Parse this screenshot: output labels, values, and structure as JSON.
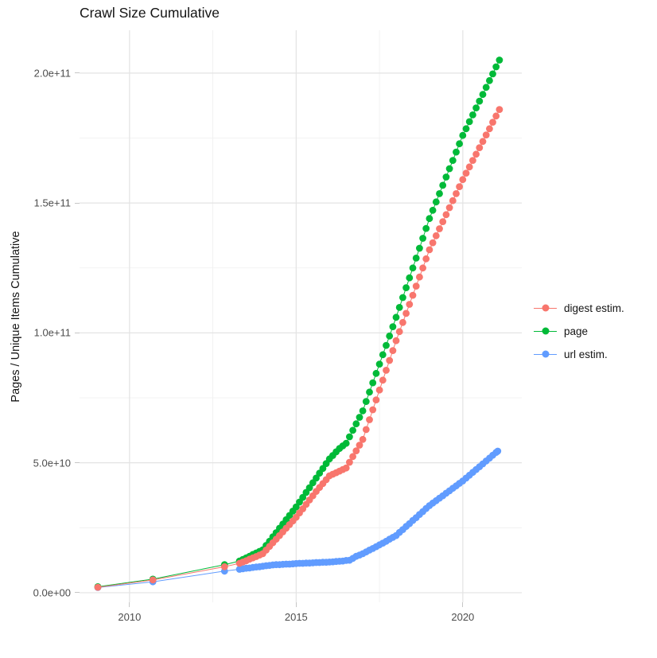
{
  "chart_data": {
    "type": "scatter",
    "title": "Crawl Size Cumulative",
    "xlabel": "",
    "ylabel": "Pages / Unique Items Cumulative",
    "legend_position": "right",
    "grid": true,
    "y_unit": "values stored in units of 1e10 items",
    "xlim": [
      2008.5,
      2021.77
    ],
    "ylim_e10": [
      -0.37,
      21.65
    ],
    "x_ticks": [
      {
        "value": 2010,
        "label": "2010"
      },
      {
        "value": 2015,
        "label": "2015"
      },
      {
        "value": 2020,
        "label": "2020"
      }
    ],
    "x_minor": [
      2012.5,
      2017.5
    ],
    "y_ticks": [
      {
        "value_e10": 0,
        "label": "0.0e+00"
      },
      {
        "value_e10": 5,
        "label": "5.0e+10"
      },
      {
        "value_e10": 10,
        "label": "1.0e+11"
      },
      {
        "value_e10": 15,
        "label": "1.5e+11"
      },
      {
        "value_e10": 20,
        "label": "2.0e+11"
      }
    ],
    "y_minor_e10": [
      2.5,
      7.5,
      12.5,
      17.5
    ],
    "colors": {
      "grid_major": "#e3e3e3",
      "grid_minor": "#efefef",
      "axis_text": "#4d4d4d",
      "text": "#141414"
    },
    "series": [
      {
        "id": "digest",
        "name": "digest estim.",
        "color": "#F8766D",
        "points": [
          [
            2009.05,
            0.21
          ],
          [
            2010.7,
            0.49
          ],
          [
            2012.85,
            1.0
          ],
          [
            2013.3,
            1.13
          ],
          [
            2013.4,
            1.18
          ],
          [
            2013.5,
            1.23
          ],
          [
            2013.6,
            1.29
          ],
          [
            2013.7,
            1.34
          ],
          [
            2013.8,
            1.39
          ],
          [
            2013.9,
            1.45
          ],
          [
            2014.0,
            1.5
          ],
          [
            2014.1,
            1.64
          ],
          [
            2014.2,
            1.78
          ],
          [
            2014.3,
            1.92
          ],
          [
            2014.4,
            2.06
          ],
          [
            2014.5,
            2.2
          ],
          [
            2014.6,
            2.34
          ],
          [
            2014.7,
            2.48
          ],
          [
            2014.8,
            2.62
          ],
          [
            2014.9,
            2.76
          ],
          [
            2015.0,
            2.9
          ],
          [
            2015.1,
            3.07
          ],
          [
            2015.2,
            3.23
          ],
          [
            2015.3,
            3.4
          ],
          [
            2015.4,
            3.57
          ],
          [
            2015.5,
            3.73
          ],
          [
            2015.6,
            3.9
          ],
          [
            2015.7,
            4.05
          ],
          [
            2015.8,
            4.2
          ],
          [
            2015.9,
            4.35
          ],
          [
            2016.0,
            4.5
          ],
          [
            2016.1,
            4.56
          ],
          [
            2016.2,
            4.62
          ],
          [
            2016.3,
            4.68
          ],
          [
            2016.4,
            4.74
          ],
          [
            2016.5,
            4.8
          ],
          [
            2016.6,
            5.02
          ],
          [
            2016.7,
            5.24
          ],
          [
            2016.8,
            5.46
          ],
          [
            2016.9,
            5.68
          ],
          [
            2017.0,
            5.9
          ],
          [
            2017.1,
            6.28
          ],
          [
            2017.2,
            6.66
          ],
          [
            2017.3,
            7.04
          ],
          [
            2017.4,
            7.42
          ],
          [
            2017.5,
            7.8
          ],
          [
            2017.6,
            8.18
          ],
          [
            2017.7,
            8.56
          ],
          [
            2017.8,
            8.94
          ],
          [
            2017.9,
            9.32
          ],
          [
            2018.0,
            9.7
          ],
          [
            2018.1,
            10.05
          ],
          [
            2018.2,
            10.4
          ],
          [
            2018.3,
            10.75
          ],
          [
            2018.4,
            11.1
          ],
          [
            2018.5,
            11.45
          ],
          [
            2018.6,
            11.8
          ],
          [
            2018.7,
            12.15
          ],
          [
            2018.8,
            12.5
          ],
          [
            2018.9,
            12.85
          ],
          [
            2019.0,
            13.2
          ],
          [
            2019.1,
            13.47
          ],
          [
            2019.2,
            13.74
          ],
          [
            2019.3,
            14.01
          ],
          [
            2019.4,
            14.28
          ],
          [
            2019.5,
            14.55
          ],
          [
            2019.6,
            14.82
          ],
          [
            2019.7,
            15.09
          ],
          [
            2019.8,
            15.36
          ],
          [
            2019.9,
            15.63
          ],
          [
            2020.0,
            15.9
          ],
          [
            2020.1,
            16.15
          ],
          [
            2020.2,
            16.39
          ],
          [
            2020.3,
            16.64
          ],
          [
            2020.4,
            16.88
          ],
          [
            2020.5,
            17.13
          ],
          [
            2020.6,
            17.37
          ],
          [
            2020.7,
            17.62
          ],
          [
            2020.8,
            17.86
          ],
          [
            2020.9,
            18.11
          ],
          [
            2021.0,
            18.35
          ],
          [
            2021.1,
            18.6
          ]
        ]
      },
      {
        "id": "page",
        "name": "page",
        "color": "#00BA38",
        "points": [
          [
            2009.05,
            0.23
          ],
          [
            2010.7,
            0.52
          ],
          [
            2012.85,
            1.08
          ],
          [
            2013.3,
            1.22
          ],
          [
            2013.4,
            1.28
          ],
          [
            2013.5,
            1.34
          ],
          [
            2013.6,
            1.4
          ],
          [
            2013.7,
            1.47
          ],
          [
            2013.8,
            1.53
          ],
          [
            2013.9,
            1.59
          ],
          [
            2014.0,
            1.65
          ],
          [
            2014.1,
            1.82
          ],
          [
            2014.2,
            1.98
          ],
          [
            2014.3,
            2.15
          ],
          [
            2014.4,
            2.31
          ],
          [
            2014.5,
            2.48
          ],
          [
            2014.6,
            2.64
          ],
          [
            2014.7,
            2.81
          ],
          [
            2014.8,
            2.97
          ],
          [
            2014.9,
            3.14
          ],
          [
            2015.0,
            3.3
          ],
          [
            2015.1,
            3.49
          ],
          [
            2015.2,
            3.67
          ],
          [
            2015.3,
            3.86
          ],
          [
            2015.4,
            4.04
          ],
          [
            2015.5,
            4.23
          ],
          [
            2015.6,
            4.41
          ],
          [
            2015.7,
            4.6
          ],
          [
            2015.8,
            4.78
          ],
          [
            2015.9,
            4.97
          ],
          [
            2016.0,
            5.15
          ],
          [
            2016.1,
            5.28
          ],
          [
            2016.2,
            5.42
          ],
          [
            2016.3,
            5.55
          ],
          [
            2016.4,
            5.65
          ],
          [
            2016.5,
            5.75
          ],
          [
            2016.6,
            6.0
          ],
          [
            2016.7,
            6.25
          ],
          [
            2016.8,
            6.5
          ],
          [
            2016.9,
            6.75
          ],
          [
            2017.0,
            7.0
          ],
          [
            2017.1,
            7.36
          ],
          [
            2017.2,
            7.72
          ],
          [
            2017.3,
            8.08
          ],
          [
            2017.4,
            8.44
          ],
          [
            2017.5,
            8.8
          ],
          [
            2017.6,
            9.16
          ],
          [
            2017.7,
            9.52
          ],
          [
            2017.8,
            9.88
          ],
          [
            2017.9,
            10.24
          ],
          [
            2018.0,
            10.6
          ],
          [
            2018.1,
            10.98
          ],
          [
            2018.2,
            11.36
          ],
          [
            2018.3,
            11.74
          ],
          [
            2018.4,
            12.12
          ],
          [
            2018.5,
            12.5
          ],
          [
            2018.6,
            12.88
          ],
          [
            2018.7,
            13.26
          ],
          [
            2018.8,
            13.64
          ],
          [
            2018.9,
            14.02
          ],
          [
            2019.0,
            14.4
          ],
          [
            2019.1,
            14.72
          ],
          [
            2019.2,
            15.04
          ],
          [
            2019.3,
            15.36
          ],
          [
            2019.4,
            15.68
          ],
          [
            2019.5,
            16.0
          ],
          [
            2019.6,
            16.32
          ],
          [
            2019.7,
            16.64
          ],
          [
            2019.8,
            16.96
          ],
          [
            2019.9,
            17.28
          ],
          [
            2020.0,
            17.6
          ],
          [
            2020.1,
            17.86
          ],
          [
            2020.2,
            18.13
          ],
          [
            2020.3,
            18.39
          ],
          [
            2020.4,
            18.66
          ],
          [
            2020.5,
            18.92
          ],
          [
            2020.6,
            19.18
          ],
          [
            2020.7,
            19.45
          ],
          [
            2020.8,
            19.71
          ],
          [
            2020.9,
            19.97
          ],
          [
            2021.0,
            20.24
          ],
          [
            2021.1,
            20.5
          ]
        ]
      },
      {
        "id": "url",
        "name": "url estim.",
        "color": "#619CFF",
        "points": [
          [
            2009.05,
            0.2
          ],
          [
            2010.7,
            0.42
          ],
          [
            2012.85,
            0.83
          ],
          [
            2013.3,
            0.9
          ],
          [
            2013.4,
            0.92
          ],
          [
            2013.5,
            0.94
          ],
          [
            2013.6,
            0.95
          ],
          [
            2013.7,
            0.97
          ],
          [
            2013.8,
            0.99
          ],
          [
            2013.9,
            1.0
          ],
          [
            2014.0,
            1.02
          ],
          [
            2014.1,
            1.04
          ],
          [
            2014.2,
            1.05
          ],
          [
            2014.3,
            1.07
          ],
          [
            2014.4,
            1.08
          ],
          [
            2014.5,
            1.08
          ],
          [
            2014.6,
            1.09
          ],
          [
            2014.7,
            1.1
          ],
          [
            2014.8,
            1.1
          ],
          [
            2014.9,
            1.11
          ],
          [
            2015.0,
            1.12
          ],
          [
            2015.1,
            1.13
          ],
          [
            2015.2,
            1.13
          ],
          [
            2015.3,
            1.14
          ],
          [
            2015.4,
            1.14
          ],
          [
            2015.5,
            1.15
          ],
          [
            2015.6,
            1.16
          ],
          [
            2015.7,
            1.16
          ],
          [
            2015.8,
            1.17
          ],
          [
            2015.9,
            1.17
          ],
          [
            2016.0,
            1.18
          ],
          [
            2016.1,
            1.19
          ],
          [
            2016.2,
            1.2
          ],
          [
            2016.3,
            1.21
          ],
          [
            2016.4,
            1.22
          ],
          [
            2016.5,
            1.24
          ],
          [
            2016.6,
            1.25
          ],
          [
            2016.7,
            1.32
          ],
          [
            2016.8,
            1.4
          ],
          [
            2016.9,
            1.45
          ],
          [
            2017.0,
            1.5
          ],
          [
            2017.1,
            1.57
          ],
          [
            2017.2,
            1.64
          ],
          [
            2017.3,
            1.7
          ],
          [
            2017.4,
            1.77
          ],
          [
            2017.5,
            1.84
          ],
          [
            2017.6,
            1.91
          ],
          [
            2017.7,
            1.98
          ],
          [
            2017.8,
            2.06
          ],
          [
            2017.9,
            2.13
          ],
          [
            2018.0,
            2.2
          ],
          [
            2018.1,
            2.32
          ],
          [
            2018.2,
            2.43
          ],
          [
            2018.3,
            2.55
          ],
          [
            2018.4,
            2.66
          ],
          [
            2018.5,
            2.78
          ],
          [
            2018.6,
            2.89
          ],
          [
            2018.7,
            3.01
          ],
          [
            2018.8,
            3.12
          ],
          [
            2018.9,
            3.24
          ],
          [
            2019.0,
            3.35
          ],
          [
            2019.1,
            3.45
          ],
          [
            2019.2,
            3.54
          ],
          [
            2019.3,
            3.64
          ],
          [
            2019.4,
            3.73
          ],
          [
            2019.5,
            3.83
          ],
          [
            2019.6,
            3.92
          ],
          [
            2019.7,
            4.02
          ],
          [
            2019.8,
            4.11
          ],
          [
            2019.9,
            4.21
          ],
          [
            2020.0,
            4.3
          ],
          [
            2020.1,
            4.41
          ],
          [
            2020.2,
            4.52
          ],
          [
            2020.3,
            4.63
          ],
          [
            2020.4,
            4.74
          ],
          [
            2020.5,
            4.85
          ],
          [
            2020.6,
            4.96
          ],
          [
            2020.7,
            5.07
          ],
          [
            2020.8,
            5.18
          ],
          [
            2020.9,
            5.29
          ],
          [
            2021.0,
            5.4
          ],
          [
            2021.05,
            5.45
          ]
        ]
      }
    ]
  }
}
